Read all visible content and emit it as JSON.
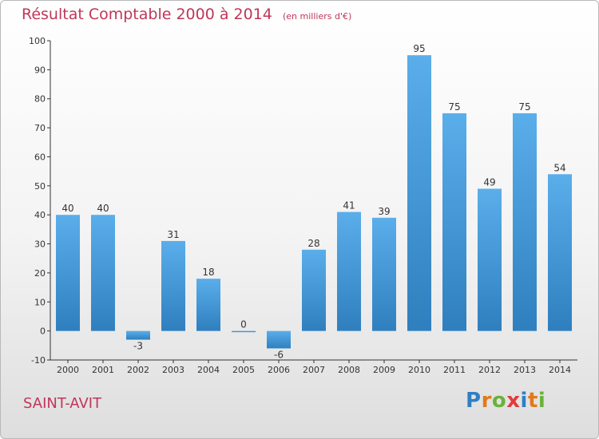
{
  "chart_data": {
    "type": "bar",
    "title": "Résultat Comptable 2000 à 2014",
    "subtitle": "(en milliers d'€)",
    "categories": [
      "2000",
      "2001",
      "2002",
      "2003",
      "2004",
      "2005",
      "2006",
      "2007",
      "2008",
      "2009",
      "2010",
      "2011",
      "2012",
      "2013",
      "2014"
    ],
    "values": [
      40,
      40,
      -3,
      31,
      18,
      0,
      -6,
      28,
      41,
      39,
      95,
      75,
      49,
      75,
      54
    ],
    "ylim": [
      -10,
      100
    ],
    "yticks": [
      -10,
      0,
      10,
      20,
      30,
      40,
      50,
      60,
      70,
      80,
      90,
      100
    ],
    "grid": false,
    "legend": "none",
    "bar_color_light": "#5aaeea",
    "bar_color_dark": "#2f7fbf"
  },
  "place_name": "SAINT-AVIT",
  "brand": {
    "letters": [
      "P",
      "r",
      "o",
      "x",
      "i",
      "t",
      "i"
    ],
    "colors": [
      "#2f7fc4",
      "#e07a1c",
      "#6ab23a",
      "#e23b3b",
      "#2f7fc4",
      "#e07a1c",
      "#6ab23a"
    ]
  }
}
